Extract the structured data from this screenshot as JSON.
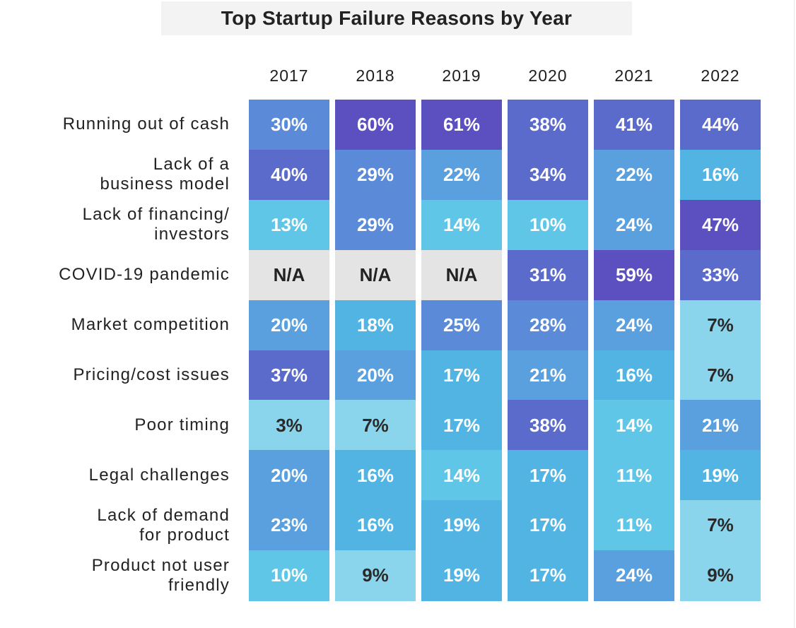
{
  "chart_data": {
    "type": "heatmap",
    "title": "Top Startup Failure Reasons by Year",
    "columns": [
      "2017",
      "2018",
      "2019",
      "2020",
      "2021",
      "2022"
    ],
    "rows": [
      {
        "label": "Running out of cash",
        "values": [
          "30%",
          "60%",
          "61%",
          "38%",
          "41%",
          "44%"
        ]
      },
      {
        "label": "Lack of a\nbusiness model",
        "values": [
          "40%",
          "29%",
          "22%",
          "34%",
          "22%",
          "16%"
        ]
      },
      {
        "label": "Lack of financing/\ninvestors",
        "values": [
          "13%",
          "29%",
          "14%",
          "10%",
          "24%",
          "47%"
        ]
      },
      {
        "label": "COVID-19 pandemic",
        "values": [
          "N/A",
          "N/A",
          "N/A",
          "31%",
          "59%",
          "33%"
        ]
      },
      {
        "label": "Market competition",
        "values": [
          "20%",
          "18%",
          "25%",
          "28%",
          "24%",
          "7%"
        ]
      },
      {
        "label": "Pricing/cost issues",
        "values": [
          "37%",
          "20%",
          "17%",
          "21%",
          "16%",
          "7%"
        ]
      },
      {
        "label": "Poor timing",
        "values": [
          "3%",
          "7%",
          "17%",
          "38%",
          "14%",
          "21%"
        ]
      },
      {
        "label": "Legal challenges",
        "values": [
          "20%",
          "16%",
          "14%",
          "17%",
          "11%",
          "19%"
        ]
      },
      {
        "label": "Lack of demand\nfor product",
        "values": [
          "23%",
          "16%",
          "19%",
          "17%",
          "11%",
          "7%"
        ]
      },
      {
        "label": "Product not user\nfriendly",
        "values": [
          "10%",
          "9%",
          "19%",
          "17%",
          "24%",
          "9%"
        ]
      }
    ],
    "colors": {
      "na": "#e4e4e4",
      "scale": [
        "#8bd5ec",
        "#5fc6e8",
        "#52b4e3",
        "#5aa0de",
        "#5a8ad8",
        "#5b6bcc",
        "#5c4fc0"
      ]
    }
  }
}
